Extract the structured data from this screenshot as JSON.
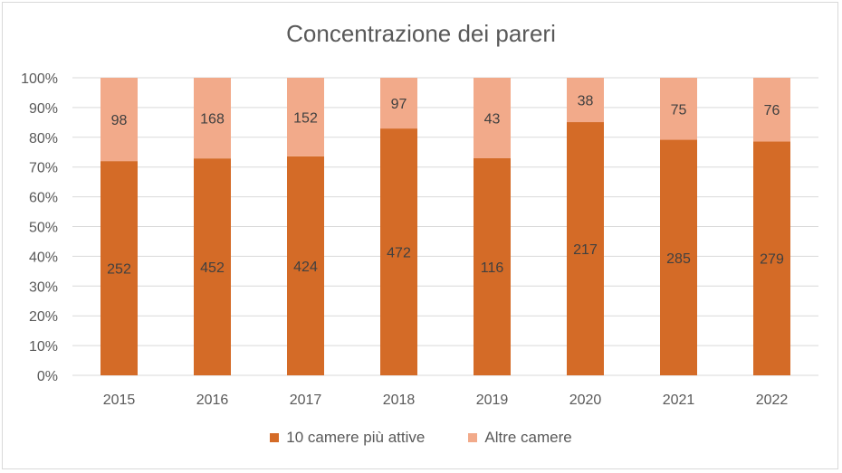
{
  "chart_data": {
    "type": "bar",
    "stacked": "percent",
    "title": "Concentrazione dei pareri",
    "categories": [
      "2015",
      "2016",
      "2017",
      "2018",
      "2019",
      "2020",
      "2021",
      "2022"
    ],
    "series": [
      {
        "name": "10 camere più attive",
        "values": [
          252,
          452,
          424,
          472,
          116,
          217,
          285,
          279
        ],
        "color": "#D46B27"
      },
      {
        "name": "Altre camere",
        "values": [
          98,
          168,
          152,
          97,
          43,
          38,
          75,
          76
        ],
        "color": "#F2AA8A"
      }
    ],
    "yticks": [
      "0%",
      "10%",
      "20%",
      "30%",
      "40%",
      "50%",
      "60%",
      "70%",
      "80%",
      "90%",
      "100%"
    ],
    "ylim": [
      0,
      100
    ],
    "grid": true,
    "legend": "bottom"
  }
}
